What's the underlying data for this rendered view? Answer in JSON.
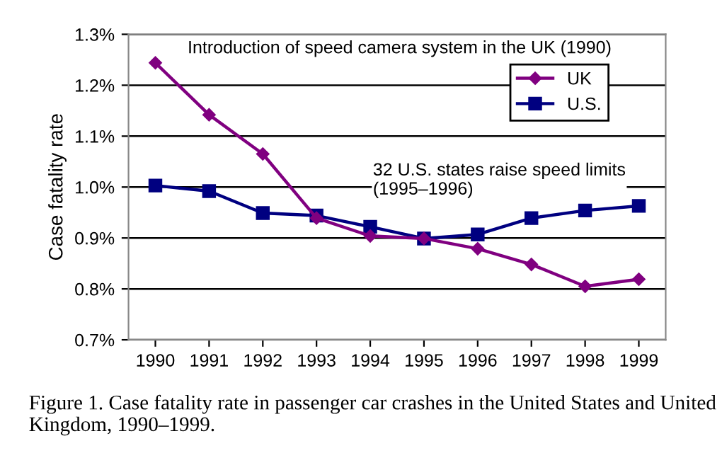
{
  "chart_data": {
    "type": "line",
    "ylabel": "Case fatality rate",
    "x": [
      1990,
      1991,
      1992,
      1993,
      1994,
      1995,
      1996,
      1997,
      1998,
      1999
    ],
    "series": [
      {
        "name": "UK",
        "color": "#800080",
        "marker": "diamond",
        "values": [
          1.244,
          1.142,
          1.065,
          0.939,
          0.904,
          0.899,
          0.879,
          0.848,
          0.805,
          0.819
        ]
      },
      {
        "name": "U.S.",
        "color": "#000080",
        "marker": "square",
        "values": [
          1.003,
          0.992,
          0.949,
          0.944,
          0.922,
          0.899,
          0.907,
          0.939,
          0.954,
          0.963
        ]
      }
    ],
    "xlim": [
      1989.5,
      1999.5
    ],
    "xticks": [
      1990,
      1991,
      1992,
      1993,
      1994,
      1995,
      1996,
      1997,
      1998,
      1999
    ],
    "ylim": [
      0.7,
      1.3
    ],
    "yticks": [
      {
        "value": 0.7,
        "label": "0.7%"
      },
      {
        "value": 0.8,
        "label": "0.8%"
      },
      {
        "value": 0.9,
        "label": "0.9%"
      },
      {
        "value": 1.0,
        "label": "1.0%"
      },
      {
        "value": 1.1,
        "label": "1.1%"
      },
      {
        "value": 1.2,
        "label": "1.2%"
      },
      {
        "value": 1.3,
        "label": "1.3%"
      }
    ],
    "grid": "y",
    "legend": "top right",
    "line_style": "solid",
    "annotations": [
      "Introduction of speed camera system in the UK (1990)",
      "32 U.S. states raise speed limits (1995–1996)",
      "Figure 1. Case fatality rate in passenger car crashes in the United States and United Kingdom, 1990–1999."
    ]
  }
}
